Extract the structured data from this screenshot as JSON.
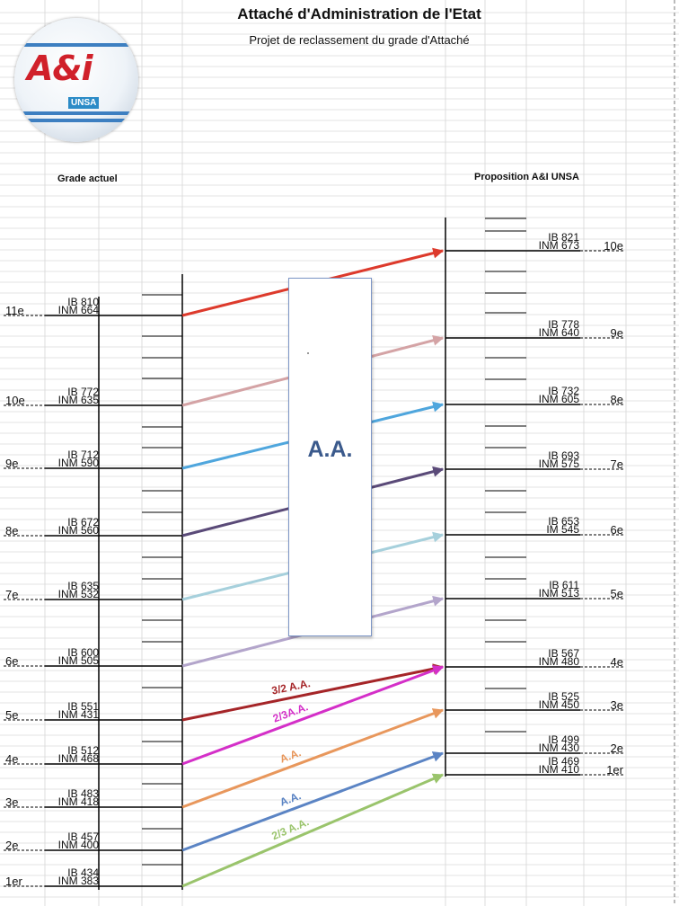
{
  "header": {
    "title": "Attaché d'Administration de l'Etat",
    "subtitle": "Projet de reclassement du grade d'Attaché"
  },
  "logo": {
    "text": "A&i",
    "union": "UNSA"
  },
  "columns": {
    "left_heading": "Grade actuel",
    "right_heading": "Proposition A&I UNSA"
  },
  "center_box": {
    "label": "A.A."
  },
  "colors": {
    "red": "#dd3a2c",
    "rose": "#d4a3a5",
    "sky": "#4fa6dd",
    "purple": "#5a4a78",
    "ice": "#a6d0dc",
    "lavender": "#b3a5cb",
    "darkred": "#a52528",
    "magenta": "#d42fc8",
    "orange": "#e8975c",
    "blue": "#5b84c4",
    "green": "#9ac46c"
  },
  "current_grade": [
    {
      "echelon": "11e",
      "ib": "IB 810",
      "inm": "INM 664"
    },
    {
      "echelon": "10e",
      "ib": "IB 772",
      "inm": "INM 635"
    },
    {
      "echelon": "9e",
      "ib": "IB 712",
      "inm": "INM 590"
    },
    {
      "echelon": "8e",
      "ib": "IB 672",
      "inm": "INM 560"
    },
    {
      "echelon": "7e",
      "ib": "IB 635",
      "inm": "INM 532"
    },
    {
      "echelon": "6e",
      "ib": "IB 600",
      "inm": "INM 505"
    },
    {
      "echelon": "5e",
      "ib": "IB 551",
      "inm": "INM 431"
    },
    {
      "echelon": "4e",
      "ib": "IB 512",
      "inm": "INM 468"
    },
    {
      "echelon": "3e",
      "ib": "IB 483",
      "inm": "INM 418"
    },
    {
      "echelon": "2e",
      "ib": "IB 457",
      "inm": "INM 400"
    },
    {
      "echelon": "1er",
      "ib": "IB 434",
      "inm": "INM 383"
    }
  ],
  "proposed_grade": [
    {
      "echelon": "10e",
      "ib": "IB 821",
      "inm": "INM 673"
    },
    {
      "echelon": "9e",
      "ib": "IB 778",
      "inm": "INM 640"
    },
    {
      "echelon": "8e",
      "ib": "IB 732",
      "inm": "INM 605"
    },
    {
      "echelon": "7e",
      "ib": "IB 693",
      "inm": "INM 575"
    },
    {
      "echelon": "6e",
      "ib": "IB 653",
      "inm": "IM 545"
    },
    {
      "echelon": "5e",
      "ib": "IB 611",
      "inm": "INM 513"
    },
    {
      "echelon": "4e",
      "ib": "IB 567",
      "inm": "INM 480"
    },
    {
      "echelon": "3e",
      "ib": "IB 525",
      "inm": "INM 450"
    },
    {
      "echelon": "2e",
      "ib": "IB 499",
      "inm": "INM 430"
    },
    {
      "echelon": "1er",
      "ib": "IB 469",
      "inm": "INM 410"
    }
  ],
  "transitions": [
    {
      "from": "11e",
      "to": "10e",
      "color": "red",
      "label": ""
    },
    {
      "from": "10e",
      "to": "9e",
      "color": "rose",
      "label": ""
    },
    {
      "from": "9e",
      "to": "8e",
      "color": "sky",
      "label": ""
    },
    {
      "from": "8e",
      "to": "7e",
      "color": "purple",
      "label": ""
    },
    {
      "from": "7e",
      "to": "6e",
      "color": "ice",
      "label": ""
    },
    {
      "from": "6e",
      "to": "5e",
      "color": "lavender",
      "label": ""
    },
    {
      "from": "5e",
      "to": "4e",
      "color": "darkred",
      "label": "3/2 A.A."
    },
    {
      "from": "4e",
      "to": "4e",
      "color": "magenta",
      "label": "2/3A.A."
    },
    {
      "from": "3e",
      "to": "3e",
      "color": "orange",
      "label": "A.A."
    },
    {
      "from": "2e",
      "to": "2e",
      "color": "blue",
      "label": "A.A."
    },
    {
      "from": "1er",
      "to": "1er",
      "color": "green",
      "label": "2/3 A.A."
    }
  ]
}
